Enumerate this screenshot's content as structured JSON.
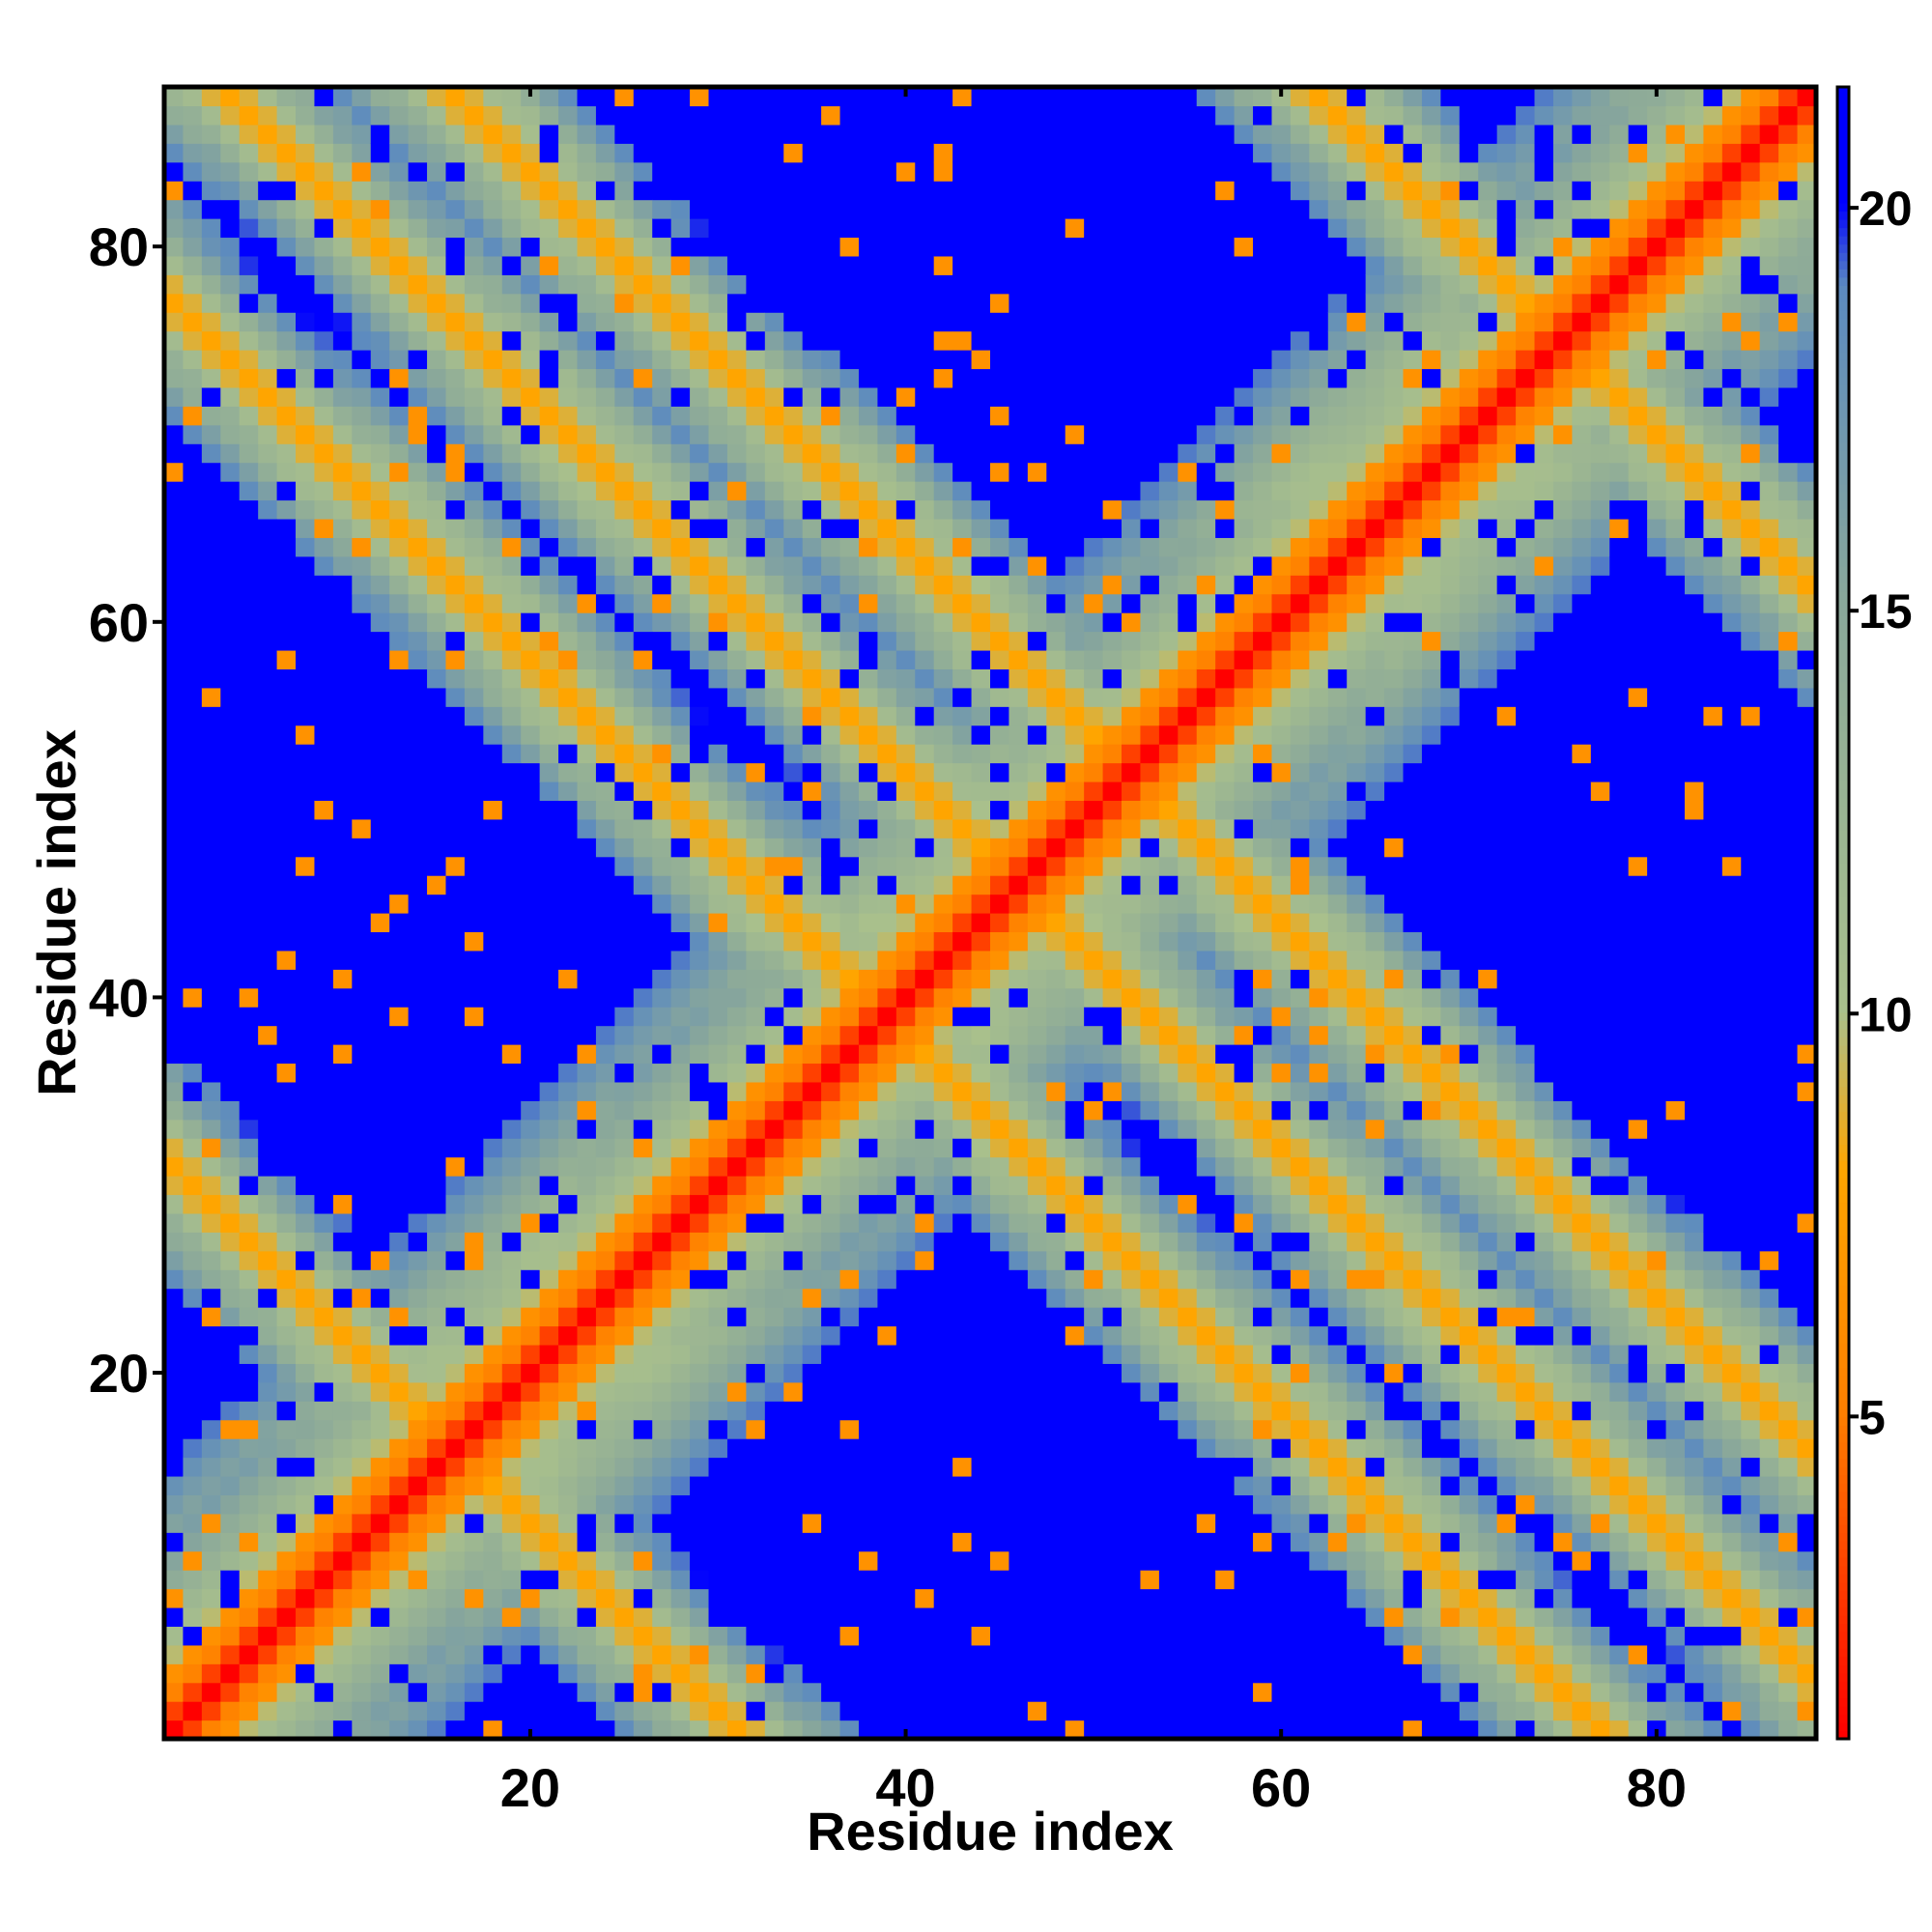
{
  "chart_data": {
    "type": "heatmap",
    "title": "",
    "xlabel": "Residue index",
    "ylabel": "Residue index",
    "n_residues": 88,
    "xlim": [
      0.5,
      88.5
    ],
    "ylim": [
      0.5,
      88.5
    ],
    "x_ticks": [
      20,
      40,
      60,
      80
    ],
    "y_ticks": [
      20,
      40,
      60,
      80
    ],
    "x_tick_labels": [
      "20",
      "40",
      "60",
      "80"
    ],
    "y_tick_labels": [
      "20",
      "40",
      "60",
      "80"
    ],
    "colorbar": {
      "range": [
        1,
        21.5
      ],
      "ticks": [
        5,
        10,
        15,
        20
      ],
      "tick_labels": [
        "5",
        "10",
        "15",
        "20"
      ],
      "stops": [
        {
          "value": 1,
          "color": "#ff0000"
        },
        {
          "value": 5,
          "color": "#ff7f00"
        },
        {
          "value": 8,
          "color": "#ffa500"
        },
        {
          "value": 10,
          "color": "#a9c08c"
        },
        {
          "value": 15,
          "color": "#8aa89a"
        },
        {
          "value": 19,
          "color": "#5b8ac0"
        },
        {
          "value": 20,
          "color": "#0000ff"
        }
      ],
      "above_max_color": "#0000ff"
    },
    "structure": {
      "description_values": "pairwise distance map of an 88-residue chain; distance grows from the diagonal with anti-diagonal contact bands",
      "diagonal_value": 1,
      "antidiagonal_bands": [
        {
          "i_plus_j": 32,
          "value": 6
        },
        {
          "i_plus_j": 78,
          "value": 6
        },
        {
          "i_plus_j": 92,
          "value": 6
        },
        {
          "i_plus_j": 104,
          "value": 6
        },
        {
          "i_plus_j": 150,
          "value": 6
        }
      ]
    },
    "legend": "colorbar-right",
    "grid": false
  }
}
